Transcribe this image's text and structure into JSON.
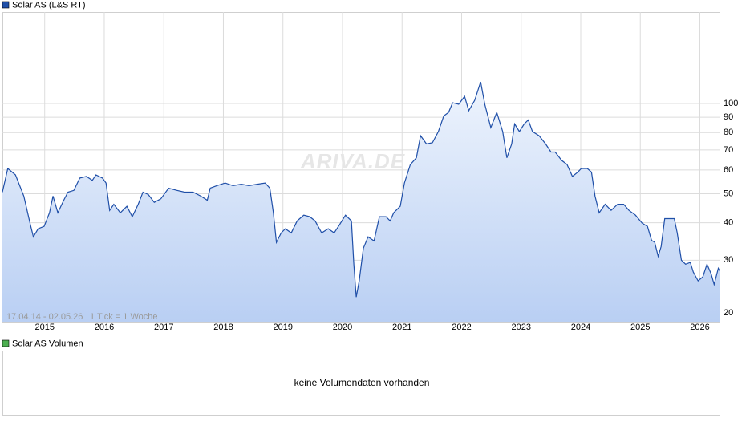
{
  "chart_data": {
    "type": "line",
    "series": [
      {
        "name": "Solar AS (L&S RT)",
        "color": "#1f4fa8",
        "values": [
          50.6,
          60.7,
          57.8,
          49.1,
          39.4,
          35.9,
          38.2,
          38.9,
          43.2,
          49.1,
          43.2,
          47.6,
          50.6,
          51.3,
          56.4,
          57.1,
          55.4,
          57.8,
          56.4,
          54.3,
          44.0,
          46.1,
          43.2,
          45.4,
          41.9,
          46.1,
          50.6,
          49.7,
          46.8,
          48.1,
          52.2,
          51.3,
          50.6,
          50.6,
          49.1,
          47.6,
          52.2,
          53.2,
          54.3,
          53.2,
          53.8,
          53.2,
          53.8,
          54.3,
          52.2,
          43.2,
          34.4,
          37.0,
          38.2,
          37.0,
          40.6,
          42.4,
          41.9,
          40.6,
          37.0,
          38.2,
          37.0,
          39.4,
          42.4,
          40.6,
          29.1,
          22.6,
          25.6,
          32.9,
          35.9,
          34.8,
          41.9,
          41.9,
          40.6,
          43.2,
          45.4,
          54.3,
          62.6,
          65.9,
          78.1,
          73.3,
          74.0,
          80.6,
          90.9,
          93.4,
          100.6,
          99.4,
          105.7,
          94.6,
          102.5,
          118.1,
          99.4,
          83.1,
          93.4,
          80.6,
          65.9,
          73.3,
          85.5,
          80.6,
          85.5,
          88.1,
          80.6,
          78.1,
          73.3,
          68.9,
          68.9,
          64.6,
          62.6,
          57.1,
          59.0,
          60.7,
          60.7,
          59.0,
          49.1,
          43.2,
          46.1,
          44.0,
          46.1,
          46.1,
          44.0,
          42.4,
          39.9,
          38.9,
          34.9,
          34.5,
          30.9,
          33.3,
          41.3,
          41.3,
          41.3,
          37.0,
          30.0,
          29.1,
          29.5,
          27.4,
          25.6,
          26.4,
          29.1,
          27.0,
          24.9,
          28.2,
          27.7
        ]
      }
    ],
    "x": [
      2014.29,
      2014.38,
      2014.51,
      2014.65,
      2014.76,
      2014.81,
      2014.89,
      2014.99,
      2015.08,
      2015.14,
      2015.22,
      2015.32,
      2015.39,
      2015.49,
      2015.59,
      2015.7,
      2015.8,
      2015.86,
      2015.97,
      2016.03,
      2016.09,
      2016.16,
      2016.27,
      2016.38,
      2016.47,
      2016.57,
      2016.65,
      2016.74,
      2016.84,
      2016.95,
      2017.08,
      2017.22,
      2017.35,
      2017.49,
      2017.62,
      2017.73,
      2017.78,
      2017.89,
      2018.03,
      2018.16,
      2018.3,
      2018.43,
      2018.57,
      2018.7,
      2018.78,
      2018.84,
      2018.89,
      2018.97,
      2019.04,
      2019.14,
      2019.24,
      2019.35,
      2019.45,
      2019.54,
      2019.65,
      2019.76,
      2019.86,
      2019.95,
      2020.05,
      2020.15,
      2020.19,
      2020.23,
      2020.28,
      2020.35,
      2020.43,
      2020.53,
      2020.62,
      2020.73,
      2020.8,
      2020.86,
      2020.97,
      2021.04,
      2021.14,
      2021.24,
      2021.31,
      2021.41,
      2021.51,
      2021.61,
      2021.7,
      2021.78,
      2021.85,
      2021.95,
      2022.05,
      2022.12,
      2022.22,
      2022.32,
      2022.39,
      2022.49,
      2022.59,
      2022.69,
      2022.76,
      2022.84,
      2022.89,
      2022.97,
      2023.05,
      2023.12,
      2023.19,
      2023.3,
      2023.41,
      2023.5,
      2023.57,
      2023.68,
      2023.77,
      2023.86,
      2023.95,
      2024.01,
      2024.11,
      2024.18,
      2024.24,
      2024.31,
      2024.41,
      2024.51,
      2024.62,
      2024.72,
      2024.81,
      2024.92,
      2025.03,
      2025.12,
      2025.19,
      2025.24,
      2025.3,
      2025.35,
      2025.41,
      2025.49,
      2025.57,
      2025.62,
      2025.69,
      2025.76,
      2025.84,
      2025.89,
      2025.97,
      2026.05,
      2026.12,
      2026.19,
      2026.24,
      2026.31,
      2026.33
    ],
    "xlim": [
      2014.29,
      2026.33
    ],
    "xticks": [
      2015,
      2016,
      2017,
      2018,
      2019,
      2020,
      2021,
      2022,
      2023,
      2024,
      2025,
      2026
    ],
    "ylim": [
      18.7,
      202
    ],
    "yticks": [
      20,
      30,
      40,
      50,
      60,
      70,
      80,
      90,
      100
    ],
    "log_scale": true,
    "grid": true,
    "range_label": "17.04.14 - 02.05.26",
    "tick_label": "1 Tick = 1 Woche",
    "watermark": "ARIVA.DE"
  },
  "volume_panel": {
    "title": "Solar AS Volumen",
    "color": "#4caf50",
    "message": "keine Volumendaten vorhanden"
  }
}
